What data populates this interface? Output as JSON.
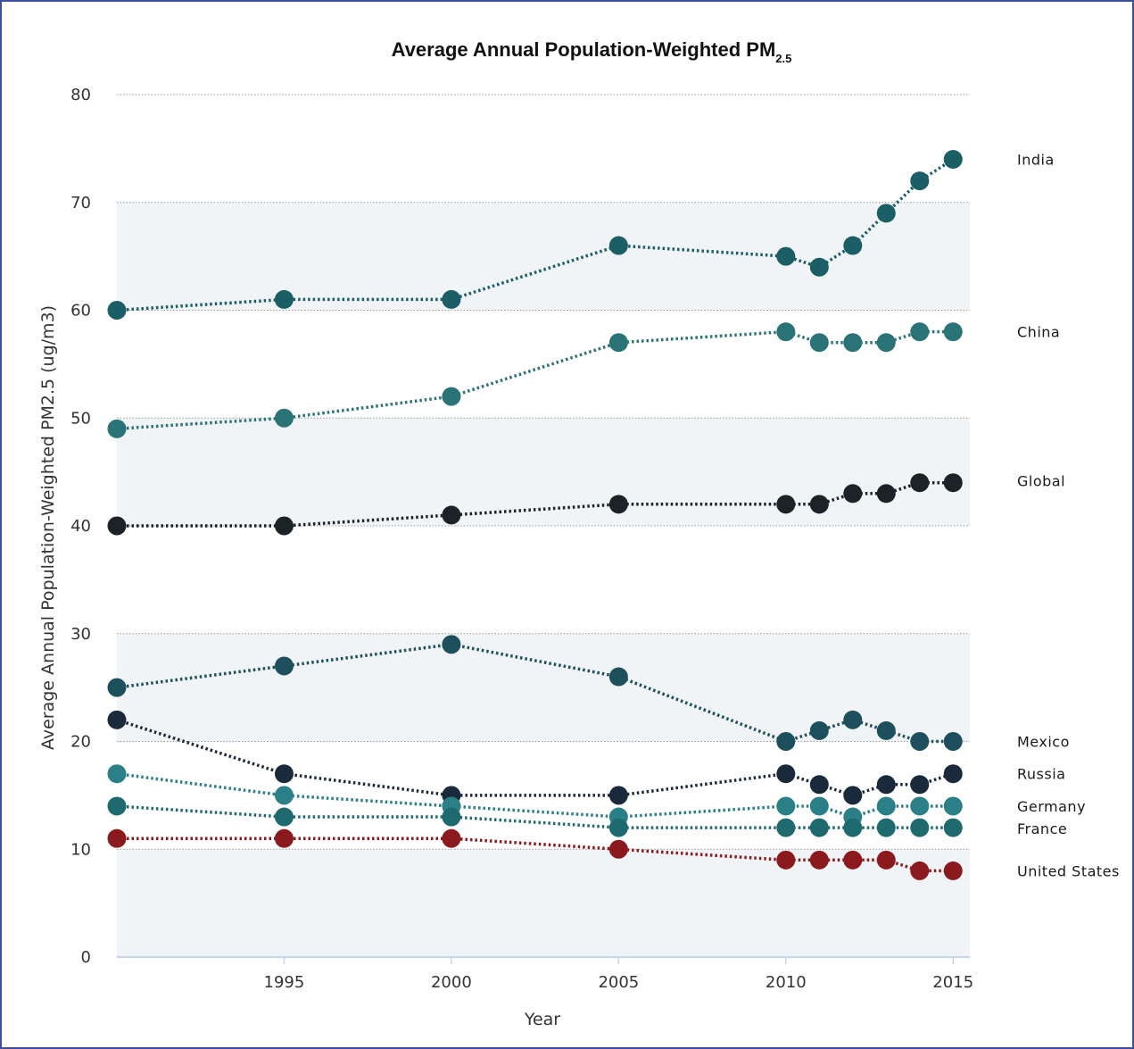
{
  "chart_data": {
    "type": "line",
    "title": "Average Annual Population-Weighted PM",
    "title_subscript": "2.5",
    "xlabel": "Year",
    "ylabel": "Average Annual Population-Weighted PM2.5 (ug/m3)",
    "xlim": [
      1990,
      2015.5
    ],
    "ylim": [
      0,
      80
    ],
    "x_ticks": [
      1995,
      2000,
      2005,
      2010,
      2015
    ],
    "y_ticks": [
      0,
      10,
      20,
      30,
      40,
      50,
      60,
      70,
      80
    ],
    "grid": true,
    "legend": "labels at right end of lines",
    "x": [
      1990,
      1995,
      2000,
      2005,
      2010,
      2011,
      2012,
      2013,
      2014,
      2015
    ],
    "series": [
      {
        "name": "India",
        "color": "#1b5e66",
        "values": [
          60,
          61,
          61,
          66,
          65,
          64,
          66,
          69,
          72,
          74
        ]
      },
      {
        "name": "China",
        "color": "#2a7377",
        "values": [
          49,
          50,
          52,
          57,
          58,
          57,
          57,
          57,
          58,
          58
        ]
      },
      {
        "name": "Global",
        "color": "#1c2326",
        "values": [
          40,
          40,
          41,
          42,
          42,
          42,
          43,
          43,
          44,
          44
        ]
      },
      {
        "name": "Mexico",
        "color": "#1e4f5c",
        "values": [
          25,
          27,
          29,
          26,
          20,
          21,
          22,
          21,
          20,
          20
        ]
      },
      {
        "name": "Russia",
        "color": "#1a2a3a",
        "values": [
          22,
          17,
          15,
          15,
          17,
          16,
          15,
          16,
          16,
          17
        ]
      },
      {
        "name": "Germany",
        "color": "#2a8086",
        "values": [
          17,
          15,
          14,
          13,
          14,
          14,
          13,
          14,
          14,
          14
        ]
      },
      {
        "name": "France",
        "color": "#1f6a6e",
        "values": [
          14,
          13,
          13,
          12,
          12,
          12,
          12,
          12,
          12,
          12
        ]
      },
      {
        "name": "United States",
        "color": "#8b1a1f",
        "values": [
          11,
          11,
          11,
          10,
          9,
          9,
          9,
          9,
          8,
          8
        ]
      }
    ]
  },
  "colors": {
    "band": "#f1f4f6",
    "grid": "#999999",
    "frame": "#3b4fa0",
    "axis": "#c8d4ee"
  }
}
